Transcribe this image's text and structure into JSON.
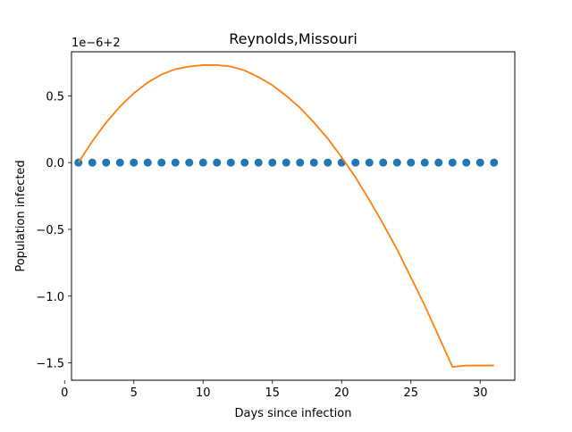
{
  "chart_data": {
    "type": "scatter",
    "title": "Reynolds,Missouri",
    "xlabel": "Days since infection",
    "ylabel": "Population infected",
    "offset_text": "1e−6+2",
    "xlim": [
      0.5,
      32.5
    ],
    "ylim": [
      -1.63,
      0.83
    ],
    "xticks": [
      {
        "v": 0,
        "label": "0"
      },
      {
        "v": 5,
        "label": "5"
      },
      {
        "v": 10,
        "label": "10"
      },
      {
        "v": 15,
        "label": "15"
      },
      {
        "v": 20,
        "label": "20"
      },
      {
        "v": 25,
        "label": "25"
      },
      {
        "v": 30,
        "label": "30"
      }
    ],
    "yticks": [
      {
        "v": 0.5,
        "label": "0.5"
      },
      {
        "v": 0.0,
        "label": "0.0"
      },
      {
        "v": -0.5,
        "label": "−0.5"
      },
      {
        "v": -1.0,
        "label": "−1.0"
      },
      {
        "v": -1.5,
        "label": "−1.5"
      }
    ],
    "grid": false,
    "series": [
      {
        "kind": "scatter",
        "color": "#1f77b4",
        "x": [
          1,
          2,
          3,
          4,
          5,
          6,
          7,
          8,
          9,
          10,
          11,
          12,
          13,
          14,
          15,
          16,
          17,
          18,
          19,
          20,
          21,
          22,
          23,
          24,
          25,
          26,
          27,
          28,
          29,
          30,
          31
        ],
        "y": [
          0,
          0,
          0,
          0,
          0,
          0,
          0,
          0,
          0,
          0,
          0,
          0,
          0,
          0,
          0,
          0,
          0,
          0,
          0,
          0,
          0,
          0,
          0,
          0,
          0,
          0,
          0,
          0,
          0,
          0,
          0
        ]
      },
      {
        "kind": "line",
        "color": "#ff7f0e",
        "x": [
          1,
          2,
          3,
          4,
          5,
          6,
          7,
          8,
          9,
          10,
          11,
          12,
          13,
          14,
          15,
          16,
          17,
          18,
          19,
          20,
          21,
          22,
          23,
          24,
          25,
          26,
          27,
          28,
          29,
          30,
          31
        ],
        "y": [
          0.0,
          0.16,
          0.3,
          0.42,
          0.52,
          0.6,
          0.66,
          0.7,
          0.72,
          0.73,
          0.73,
          0.72,
          0.69,
          0.64,
          0.58,
          0.5,
          0.41,
          0.3,
          0.18,
          0.04,
          -0.11,
          -0.28,
          -0.46,
          -0.65,
          -0.86,
          -1.07,
          -1.3,
          -1.53,
          -1.52,
          -1.52,
          -1.52
        ]
      }
    ]
  }
}
